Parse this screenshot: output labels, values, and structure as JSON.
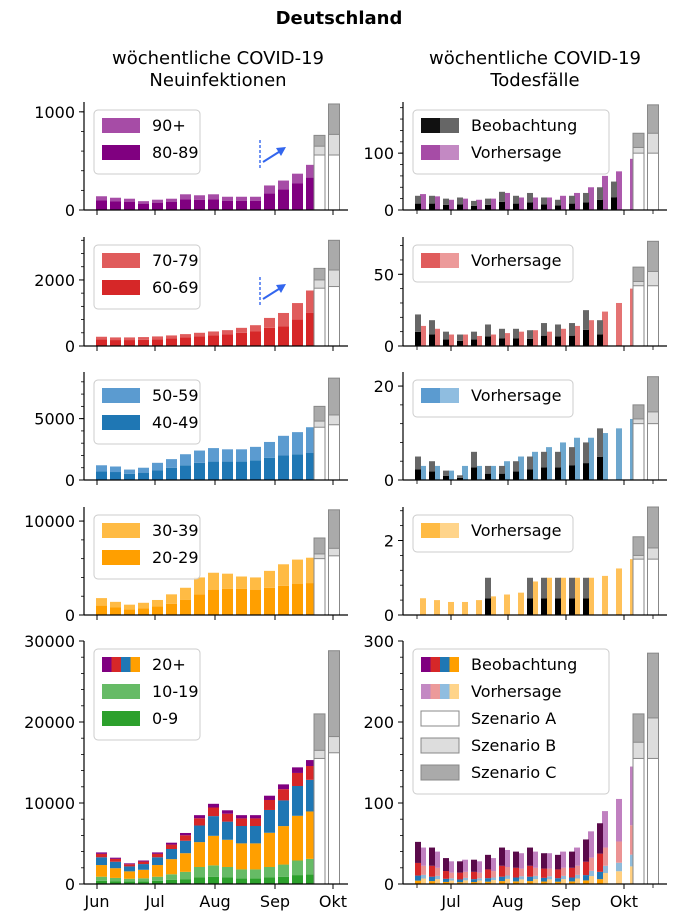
{
  "figure": {
    "title": "Deutschland",
    "left_column_title": [
      "wöchentliche COVID-19",
      "Neuinfektionen"
    ],
    "right_column_title": [
      "wöchentliche COVID-19",
      "Todesfälle"
    ]
  },
  "colors": {
    "age_90plus": "#a64ca6",
    "age_80_89": "#800080",
    "age_70_79": "#e05c5c",
    "age_60_69": "#d62728",
    "age_50_59": "#5b9bd0",
    "age_40_49": "#1f77b4",
    "age_30_39": "#ffbb44",
    "age_20_29": "#ff9f00",
    "age_10_19": "#66bb66",
    "age_0_9": "#2ca02c",
    "observed_dark": "#000000",
    "observed_gray": "#555555",
    "scenario_A": "#ffffff",
    "scenario_B": "#dddddd",
    "scenario_C": "#aaaaaa",
    "scenario_edge": "#888888",
    "arrow": "#3366ee"
  },
  "chart_data": [
    {
      "type": "bar",
      "panel": "infections-90plus",
      "x_ticks": [
        "Jun",
        "Jul",
        "Aug",
        "Sep",
        "Okt"
      ],
      "ylim": [
        0,
        1100
      ],
      "yticks": [
        0,
        1000
      ],
      "legend": {
        "position": "top-left",
        "entries": [
          {
            "label": "90+",
            "color": "#a64ca6"
          },
          {
            "label": "80-89",
            "color": "#800080"
          }
        ]
      },
      "series": [
        {
          "name": "80-89",
          "values": [
            100,
            90,
            85,
            65,
            75,
            85,
            110,
            105,
            110,
            95,
            95,
            95,
            170,
            210,
            270,
            330
          ]
        },
        {
          "name": "90+",
          "values": [
            40,
            35,
            30,
            25,
            30,
            30,
            50,
            45,
            50,
            40,
            40,
            40,
            80,
            90,
            100,
            130
          ]
        }
      ],
      "scenarios": [
        {
          "A": 560,
          "B": 650,
          "C": 760
        },
        {
          "A": 560,
          "B": 770,
          "C": 1080
        }
      ]
    },
    {
      "type": "bar",
      "panel": "infections-60-79",
      "ylim": [
        0,
        3300
      ],
      "yticks": [
        0,
        2000
      ],
      "legend": {
        "position": "top-left",
        "entries": [
          {
            "label": "70-79",
            "color": "#e05c5c"
          },
          {
            "label": "60-69",
            "color": "#d62728"
          }
        ]
      },
      "series": [
        {
          "name": "60-69",
          "values": [
            200,
            180,
            180,
            190,
            200,
            230,
            260,
            290,
            320,
            350,
            400,
            450,
            550,
            600,
            800,
            1000
          ]
        },
        {
          "name": "70-79",
          "values": [
            80,
            80,
            80,
            80,
            90,
            90,
            100,
            110,
            120,
            130,
            150,
            180,
            300,
            400,
            500,
            680
          ]
        }
      ],
      "scenarios": [
        {
          "A": 1750,
          "B": 2000,
          "C": 2350
        },
        {
          "A": 1800,
          "B": 2300,
          "C": 3200
        }
      ]
    },
    {
      "type": "bar",
      "panel": "infections-40-59",
      "ylim": [
        0,
        8800
      ],
      "yticks": [
        0,
        5000
      ],
      "legend": {
        "position": "top-left",
        "entries": [
          {
            "label": "50-59",
            "color": "#5b9bd0"
          },
          {
            "label": "40-49",
            "color": "#1f77b4"
          }
        ]
      },
      "series": [
        {
          "name": "40-49",
          "values": [
            700,
            650,
            500,
            600,
            800,
            1000,
            1200,
            1400,
            1500,
            1500,
            1500,
            1600,
            1800,
            2000,
            2100,
            2200
          ]
        },
        {
          "name": "50-59",
          "values": [
            500,
            450,
            350,
            400,
            600,
            700,
            900,
            1000,
            1100,
            1000,
            1000,
            1100,
            1300,
            1600,
            1800,
            2100
          ]
        }
      ],
      "scenarios": [
        {
          "A": 4300,
          "B": 4800,
          "C": 6000
        },
        {
          "A": 4500,
          "B": 5300,
          "C": 8300
        }
      ]
    },
    {
      "type": "bar",
      "panel": "infections-20-39",
      "ylim": [
        0,
        11500
      ],
      "yticks": [
        0,
        10000
      ],
      "legend": {
        "position": "top-left",
        "entries": [
          {
            "label": "30-39",
            "color": "#ffbb44"
          },
          {
            "label": "20-29",
            "color": "#ff9f00"
          }
        ]
      },
      "series": [
        {
          "name": "20-29",
          "values": [
            1000,
            800,
            600,
            700,
            900,
            1200,
            1600,
            2200,
            2700,
            2800,
            2800,
            2700,
            2900,
            3100,
            3300,
            3400
          ]
        },
        {
          "name": "30-39",
          "values": [
            800,
            600,
            500,
            600,
            700,
            1000,
            1300,
            1800,
            1800,
            1600,
            1300,
            1300,
            1800,
            2300,
            2600,
            2700
          ]
        }
      ],
      "scenarios": [
        {
          "A": 6000,
          "B": 6500,
          "C": 8200
        },
        {
          "A": 6300,
          "B": 7100,
          "C": 11200
        }
      ]
    },
    {
      "type": "bar",
      "panel": "infections-all",
      "ylim": [
        0,
        30000
      ],
      "yticks": [
        0,
        10000,
        20000,
        30000
      ],
      "legend": {
        "position": "top-left",
        "entries": [
          {
            "label": "20+",
            "colors": [
              "#800080",
              "#d62728",
              "#1f77b4",
              "#ff9f00"
            ]
          },
          {
            "label": "10-19",
            "color": "#66bb66"
          },
          {
            "label": "0-9",
            "color": "#2ca02c"
          }
        ]
      },
      "series": [
        {
          "name": "0-9",
          "values": [
            400,
            350,
            300,
            300,
            400,
            500,
            600,
            800,
            900,
            800,
            700,
            700,
            800,
            900,
            1100,
            1200
          ]
        },
        {
          "name": "10-19",
          "values": [
            500,
            400,
            350,
            400,
            500,
            700,
            900,
            1300,
            1400,
            1300,
            1100,
            1100,
            1300,
            1500,
            1800,
            1900
          ]
        },
        {
          "name": "20+",
          "values": [
            3000,
            2500,
            1900,
            2200,
            3000,
            3900,
            4800,
            6400,
            7600,
            7000,
            6700,
            6700,
            8800,
            9900,
            11500,
            12200
          ]
        }
      ],
      "scenarios": [
        {
          "A": 15500,
          "B": 16500,
          "C": 21000
        },
        {
          "A": 16200,
          "B": 18200,
          "C": 28800
        }
      ]
    },
    {
      "type": "bar",
      "panel": "deaths-80plus",
      "x_ticks": [
        "Jul",
        "Aug",
        "Sep",
        "Okt"
      ],
      "ylim": [
        0,
        190
      ],
      "yticks": [
        0,
        100
      ],
      "legend": {
        "position": "top-left",
        "entries": [
          {
            "label": "Beobachtung",
            "colors": [
              "#111111",
              "#666666"
            ]
          },
          {
            "label": "Vorhersage",
            "colors": [
              "#a64ca6",
              "#c389c3"
            ]
          }
        ]
      },
      "series": [
        {
          "name": "observed",
          "values": [
            25,
            25,
            20,
            22,
            16,
            20,
            32,
            25,
            30,
            22,
            18,
            25,
            30,
            40,
            50,
            0
          ]
        },
        {
          "name": "forecast",
          "values": [
            28,
            24,
            18,
            20,
            18,
            20,
            30,
            22,
            22,
            22,
            25,
            30,
            40,
            60,
            68,
            90
          ]
        }
      ],
      "scenarios": [
        {
          "A": 100,
          "B": 110,
          "C": 135
        },
        {
          "A": 100,
          "B": 135,
          "C": 185
        }
      ]
    },
    {
      "type": "bar",
      "panel": "deaths-60-79",
      "ylim": [
        0,
        76
      ],
      "yticks": [
        0,
        50
      ],
      "legend": {
        "position": "top-left",
        "entries": [
          {
            "label": "Vorhersage",
            "colors": [
              "#e05c5c",
              "#ec9a9a"
            ]
          }
        ]
      },
      "series": [
        {
          "name": "observed",
          "values": [
            22,
            18,
            10,
            8,
            10,
            15,
            12,
            12,
            11,
            16,
            15,
            16,
            25,
            18,
            0,
            0
          ]
        },
        {
          "name": "forecast",
          "values": [
            14,
            12,
            8,
            8,
            7,
            8,
            9,
            10,
            11,
            10,
            12,
            14,
            18,
            24,
            30,
            40
          ]
        }
      ],
      "scenarios": [
        {
          "A": 42,
          "B": 45,
          "C": 55
        },
        {
          "A": 42,
          "B": 52,
          "C": 73
        }
      ]
    },
    {
      "type": "bar",
      "panel": "deaths-40-59",
      "ylim": [
        0,
        23
      ],
      "yticks": [
        0,
        20
      ],
      "legend": {
        "position": "top-left",
        "entries": [
          {
            "label": "Vorhersage",
            "colors": [
              "#5b9bd0",
              "#8fbde0"
            ]
          }
        ]
      },
      "series": [
        {
          "name": "observed",
          "values": [
            5,
            4,
            2,
            1,
            6,
            3,
            3,
            4,
            5,
            6,
            6,
            7,
            8,
            11,
            0,
            0
          ]
        },
        {
          "name": "forecast",
          "values": [
            3,
            3,
            2,
            3,
            3,
            3,
            4,
            5,
            6,
            7,
            8,
            9,
            9,
            10,
            11,
            13
          ]
        }
      ],
      "scenarios": [
        {
          "A": 12,
          "B": 13,
          "C": 16
        },
        {
          "A": 12,
          "B": 14.5,
          "C": 22
        }
      ]
    },
    {
      "type": "bar",
      "panel": "deaths-20-39",
      "ylim": [
        0,
        2.9
      ],
      "yticks": [
        0,
        2
      ],
      "legend": {
        "position": "top-left",
        "entries": [
          {
            "label": "Vorhersage",
            "colors": [
              "#ffbb44",
              "#ffd48a"
            ]
          }
        ]
      },
      "series": [
        {
          "name": "observed",
          "values": [
            0,
            0,
            0,
            0,
            0,
            1,
            0,
            0,
            1,
            1,
            1,
            1,
            1,
            0,
            0,
            0
          ]
        },
        {
          "name": "forecast",
          "values": [
            0.45,
            0.4,
            0.35,
            0.35,
            0.4,
            0.5,
            0.55,
            0.6,
            0.9,
            1.0,
            1.0,
            1.0,
            1.0,
            1.05,
            1.25,
            1.5
          ]
        }
      ],
      "scenarios": [
        {
          "A": 1.5,
          "B": 1.6,
          "C": 2.1
        },
        {
          "A": 1.5,
          "B": 1.8,
          "C": 2.9
        }
      ]
    },
    {
      "type": "bar",
      "panel": "deaths-all",
      "ylim": [
        0,
        300
      ],
      "yticks": [
        0,
        100,
        200,
        300
      ],
      "legend": {
        "position": "top-right",
        "entries": [
          {
            "label": "Beobachtung",
            "colors": [
              "#800080",
              "#d62728",
              "#1f77b4",
              "#ff9f00"
            ]
          },
          {
            "label": "Vorhersage",
            "colors": [
              "#c389c3",
              "#ec9a9a",
              "#8fbde0",
              "#ffd48a"
            ]
          },
          {
            "label": "Szenario A",
            "colors": [
              "#ffffff"
            ]
          },
          {
            "label": "Szenario B",
            "colors": [
              "#dddddd"
            ]
          },
          {
            "label": "Szenario C",
            "colors": [
              "#aaaaaa"
            ]
          }
        ]
      },
      "series": [
        {
          "name": "observed",
          "values": [
            52,
            45,
            32,
            28,
            30,
            36,
            45,
            40,
            45,
            38,
            36,
            40,
            55,
            75,
            0,
            0
          ]
        },
        {
          "name": "forecast",
          "values": [
            45,
            40,
            28,
            30,
            28,
            32,
            42,
            38,
            40,
            38,
            40,
            45,
            65,
            90,
            105,
            145
          ]
        }
      ],
      "scenarios": [
        {
          "A": 155,
          "B": 175,
          "C": 210
        },
        {
          "A": 155,
          "B": 205,
          "C": 285
        }
      ]
    }
  ]
}
